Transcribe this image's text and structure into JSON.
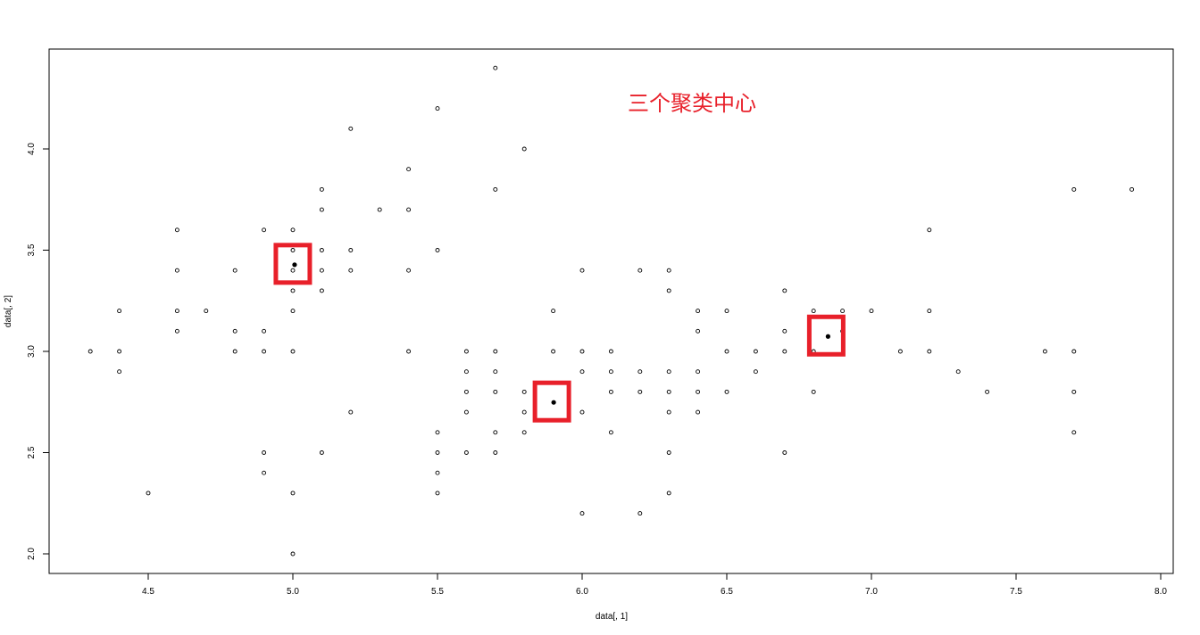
{
  "chart_data": {
    "type": "scatter",
    "title": "",
    "xlabel": "data[, 1]",
    "ylabel": "data[, 2]",
    "xlim": [
      4.3,
      7.9
    ],
    "ylim": [
      2.0,
      4.4
    ],
    "x_ticks": [
      "4.5",
      "5.0",
      "5.5",
      "6.0",
      "6.5",
      "7.0",
      "7.5",
      "8.0"
    ],
    "y_ticks": [
      "2.0",
      "2.5",
      "3.0",
      "3.5",
      "4.0"
    ],
    "grid": false,
    "annotation": "三个聚类中心",
    "highlight_color": "#e8202a",
    "series": [
      {
        "marker": "open-circle",
        "points": [
          [
            4.3,
            3.0
          ],
          [
            4.4,
            3.2
          ],
          [
            4.4,
            3.0
          ],
          [
            4.4,
            2.9
          ],
          [
            4.5,
            2.3
          ],
          [
            4.6,
            3.6
          ],
          [
            4.6,
            3.4
          ],
          [
            4.6,
            3.2
          ],
          [
            4.6,
            3.1
          ],
          [
            4.7,
            3.2
          ],
          [
            4.8,
            3.4
          ],
          [
            4.8,
            3.1
          ],
          [
            4.8,
            3.0
          ],
          [
            4.9,
            3.6
          ],
          [
            4.9,
            3.1
          ],
          [
            4.9,
            3.0
          ],
          [
            4.9,
            2.5
          ],
          [
            4.9,
            2.4
          ],
          [
            5.0,
            3.6
          ],
          [
            5.0,
            3.5
          ],
          [
            5.0,
            3.4
          ],
          [
            5.0,
            3.3
          ],
          [
            5.0,
            3.2
          ],
          [
            5.0,
            3.0
          ],
          [
            5.0,
            2.3
          ],
          [
            5.0,
            2.0
          ],
          [
            5.1,
            3.8
          ],
          [
            5.1,
            3.7
          ],
          [
            5.1,
            3.5
          ],
          [
            5.1,
            3.4
          ],
          [
            5.1,
            3.3
          ],
          [
            5.1,
            2.5
          ],
          [
            5.2,
            4.1
          ],
          [
            5.2,
            3.5
          ],
          [
            5.2,
            3.4
          ],
          [
            5.2,
            2.7
          ],
          [
            5.3,
            3.7
          ],
          [
            5.4,
            3.9
          ],
          [
            5.4,
            3.7
          ],
          [
            5.4,
            3.4
          ],
          [
            5.4,
            3.0
          ],
          [
            5.5,
            4.2
          ],
          [
            5.5,
            3.5
          ],
          [
            5.5,
            2.6
          ],
          [
            5.5,
            2.5
          ],
          [
            5.5,
            2.4
          ],
          [
            5.5,
            2.3
          ],
          [
            5.6,
            3.0
          ],
          [
            5.6,
            2.9
          ],
          [
            5.6,
            2.8
          ],
          [
            5.6,
            2.7
          ],
          [
            5.6,
            2.5
          ],
          [
            5.7,
            4.4
          ],
          [
            5.7,
            3.8
          ],
          [
            5.7,
            3.0
          ],
          [
            5.7,
            2.9
          ],
          [
            5.7,
            2.8
          ],
          [
            5.7,
            2.6
          ],
          [
            5.7,
            2.5
          ],
          [
            5.8,
            4.0
          ],
          [
            5.8,
            2.8
          ],
          [
            5.8,
            2.7
          ],
          [
            5.8,
            2.6
          ],
          [
            5.9,
            3.2
          ],
          [
            5.9,
            3.0
          ],
          [
            6.0,
            3.4
          ],
          [
            6.0,
            3.0
          ],
          [
            6.0,
            2.9
          ],
          [
            6.0,
            2.7
          ],
          [
            6.0,
            2.2
          ],
          [
            6.1,
            3.0
          ],
          [
            6.1,
            2.9
          ],
          [
            6.1,
            2.8
          ],
          [
            6.1,
            2.6
          ],
          [
            6.2,
            3.4
          ],
          [
            6.2,
            2.9
          ],
          [
            6.2,
            2.8
          ],
          [
            6.2,
            2.2
          ],
          [
            6.3,
            3.4
          ],
          [
            6.3,
            3.3
          ],
          [
            6.3,
            2.9
          ],
          [
            6.3,
            2.8
          ],
          [
            6.3,
            2.7
          ],
          [
            6.3,
            2.5
          ],
          [
            6.3,
            2.3
          ],
          [
            6.4,
            3.2
          ],
          [
            6.4,
            3.1
          ],
          [
            6.4,
            2.9
          ],
          [
            6.4,
            2.8
          ],
          [
            6.4,
            2.7
          ],
          [
            6.5,
            3.2
          ],
          [
            6.5,
            3.0
          ],
          [
            6.5,
            2.8
          ],
          [
            6.6,
            3.0
          ],
          [
            6.6,
            2.9
          ],
          [
            6.7,
            3.3
          ],
          [
            6.7,
            3.1
          ],
          [
            6.7,
            3.0
          ],
          [
            6.7,
            2.5
          ],
          [
            6.8,
            3.2
          ],
          [
            6.8,
            3.0
          ],
          [
            6.8,
            2.8
          ],
          [
            6.9,
            3.2
          ],
          [
            6.9,
            3.1
          ],
          [
            7.0,
            3.2
          ],
          [
            7.1,
            3.0
          ],
          [
            7.2,
            3.6
          ],
          [
            7.2,
            3.2
          ],
          [
            7.2,
            3.0
          ],
          [
            7.3,
            2.9
          ],
          [
            7.4,
            2.8
          ],
          [
            7.6,
            3.0
          ],
          [
            7.7,
            3.8
          ],
          [
            7.7,
            3.0
          ],
          [
            7.7,
            2.8
          ],
          [
            7.7,
            2.6
          ],
          [
            7.9,
            3.8
          ]
        ]
      },
      {
        "name": "",
        "marker": "filled-circle",
        "points": [
          [
            5.006,
            3.428
          ],
          [
            5.9016,
            2.748
          ],
          [
            6.85,
            3.0737
          ]
        ]
      }
    ]
  }
}
